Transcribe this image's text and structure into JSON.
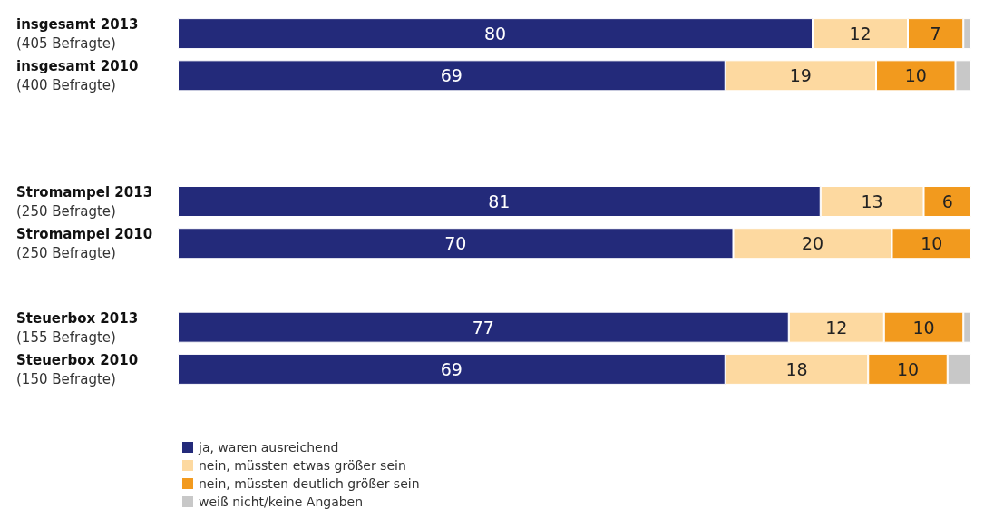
{
  "chart_data": {
    "type": "bar",
    "orientation": "horizontal",
    "stacked": true,
    "categories": [
      "insgesamt 2013\n(405 Befragte)",
      "insgesamt 2010\n(400 Befragte)",
      null,
      null,
      "Stromampel 2013\n(250 Befragte)",
      "Stromampel 2010\n(250 Befragte)",
      null,
      "Steuerbox 2013\n(155 Befragte)",
      "Steuerbox 2010\n(150 Befragte)"
    ],
    "series": [
      {
        "name": "ja, waren ausreichend",
        "color": "#232a7a",
        "values": [
          80,
          69,
          null,
          null,
          81,
          70,
          null,
          77,
          69
        ],
        "value_labels": [
          "80",
          "69",
          null,
          null,
          "81",
          "70",
          null,
          "77",
          "69"
        ]
      },
      {
        "name": "nein, müssten etwas größer sein",
        "color": "#fdd9a0",
        "values": [
          12,
          19,
          null,
          null,
          13,
          20,
          null,
          12,
          18
        ],
        "value_labels": [
          "12",
          "19",
          null,
          null,
          "13",
          "20",
          null,
          "12",
          "18"
        ]
      },
      {
        "name": "nein, müssten deutlich größer sein",
        "color": "#f29a1e",
        "values": [
          7,
          10,
          null,
          null,
          6,
          10,
          null,
          10,
          10
        ],
        "value_labels": [
          "7",
          "10",
          null,
          null,
          "6",
          "10",
          null,
          "10",
          "10"
        ]
      },
      {
        "name": "weiß nicht/keine Angaben",
        "color": "#c8c8c8",
        "values": [
          1,
          2,
          null,
          null,
          null,
          null,
          null,
          1,
          3
        ]
      }
    ],
    "xlim": [
      0,
      100
    ],
    "tick_labels": "y",
    "legend": "bottom left"
  }
}
